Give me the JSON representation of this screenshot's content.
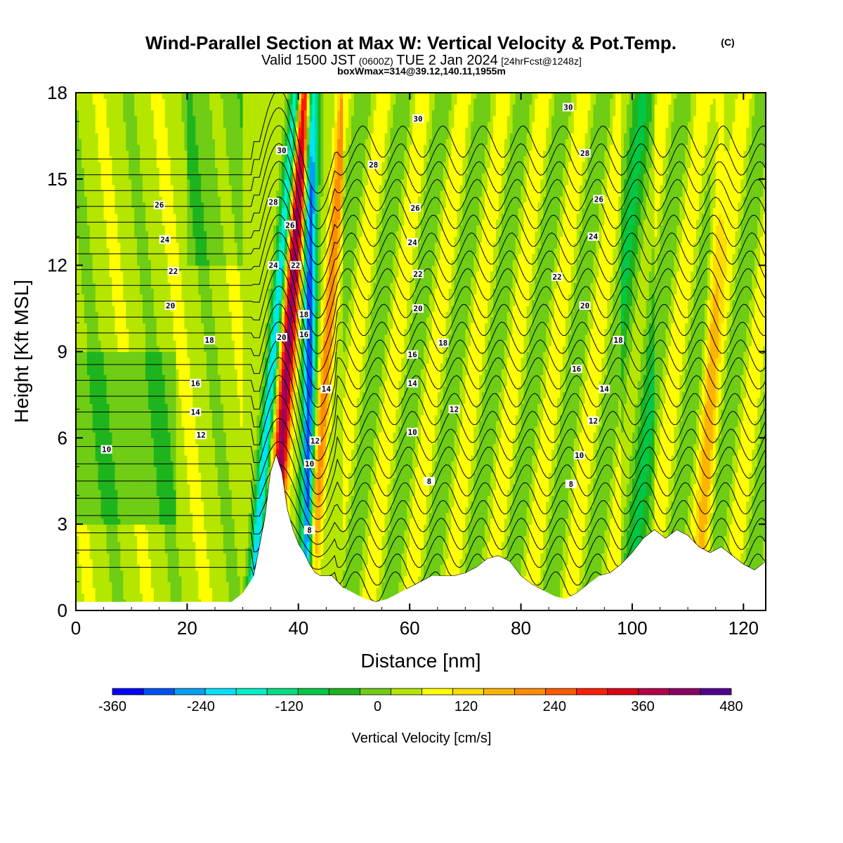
{
  "title": {
    "main": "Wind-Parallel Section at Max W: Vertical Velocity & Pot.Temp.",
    "tag": "(C)",
    "valid_prefix": "Valid 1500 JST",
    "valid_utc": "(0600Z)",
    "valid_date": "TUE 2 Jan 2024",
    "forecast": "[24hrFcst@1248z]",
    "boxmax": "boxWmax=314@39.12,140.11,1955m"
  },
  "chart_data": {
    "type": "heatmap",
    "xlabel": "Distance [nm]",
    "ylabel": "Height [Kft MSL]",
    "xlim": [
      0,
      124
    ],
    "ylim": [
      0,
      18
    ],
    "x_ticks": [
      0,
      20,
      40,
      60,
      80,
      100,
      120
    ],
    "y_ticks": [
      0,
      3,
      6,
      9,
      12,
      15,
      18
    ],
    "colorbar": {
      "label": "Vertical Velocity [cm/s]",
      "range": [
        -360,
        480
      ],
      "step": 40,
      "tick_labels": [
        "-360",
        "-240",
        "-120",
        "0",
        "120",
        "240",
        "360",
        "480"
      ],
      "colors": [
        "#0000ff",
        "#0050f5",
        "#00a0f5",
        "#00e1ff",
        "#00f0c8",
        "#00dc82",
        "#00c846",
        "#1eb41e",
        "#6ecd14",
        "#b4e600",
        "#ffff00",
        "#ffdc00",
        "#ffb400",
        "#ff8c00",
        "#ff5a00",
        "#ff1e00",
        "#dc0014",
        "#b4004b",
        "#8c0064",
        "#50008c"
      ]
    },
    "terrain": {
      "distance_nm": [
        0,
        6,
        12,
        18,
        24,
        28,
        30,
        32,
        34,
        35,
        36,
        37,
        38,
        39,
        40,
        41,
        42,
        43,
        44,
        46,
        48,
        50,
        52,
        54,
        56,
        58,
        60,
        62,
        64,
        66,
        68,
        70,
        72,
        74,
        76,
        78,
        80,
        82,
        84,
        86,
        88,
        90,
        92,
        94,
        96,
        98,
        100,
        102,
        104,
        106,
        108,
        110,
        112,
        114,
        116,
        118,
        120,
        122,
        124
      ],
      "height_kft": [
        0.3,
        0.3,
        0.3,
        0.3,
        0.3,
        0.3,
        0.6,
        1.2,
        3.2,
        4.8,
        5.4,
        4.8,
        3.5,
        2.8,
        2.3,
        2.0,
        1.6,
        1.3,
        1.2,
        1.2,
        0.8,
        0.6,
        0.4,
        0.3,
        0.4,
        0.6,
        0.8,
        1.0,
        1.2,
        1.2,
        1.2,
        1.3,
        1.5,
        1.8,
        1.9,
        1.7,
        1.2,
        0.9,
        0.7,
        0.5,
        0.4,
        0.6,
        0.9,
        1.2,
        1.3,
        1.6,
        2.0,
        2.5,
        2.8,
        2.5,
        2.8,
        2.6,
        2.2,
        2.0,
        2.2,
        1.9,
        1.6,
        1.4,
        1.7
      ]
    },
    "theta_labels": [
      {
        "x": 5.5,
        "y": 5.6,
        "t": "10"
      },
      {
        "x": 22.5,
        "y": 6.1,
        "t": "12"
      },
      {
        "x": 21.5,
        "y": 6.9,
        "t": "14"
      },
      {
        "x": 21.5,
        "y": 7.9,
        "t": "16"
      },
      {
        "x": 24,
        "y": 9.4,
        "t": "18"
      },
      {
        "x": 17,
        "y": 10.6,
        "t": "20"
      },
      {
        "x": 17.5,
        "y": 11.8,
        "t": "22"
      },
      {
        "x": 16,
        "y": 12.9,
        "t": "24"
      },
      {
        "x": 15,
        "y": 14.1,
        "t": "26"
      },
      {
        "x": 37,
        "y": 16.0,
        "t": "30"
      },
      {
        "x": 35.5,
        "y": 14.2,
        "t": "28"
      },
      {
        "x": 38.5,
        "y": 13.4,
        "t": "26"
      },
      {
        "x": 35.5,
        "y": 12.0,
        "t": "24"
      },
      {
        "x": 39.5,
        "y": 12.0,
        "t": "22"
      },
      {
        "x": 41,
        "y": 10.3,
        "t": "18"
      },
      {
        "x": 37,
        "y": 9.5,
        "t": "20"
      },
      {
        "x": 41,
        "y": 9.6,
        "t": "16"
      },
      {
        "x": 45,
        "y": 7.7,
        "t": "14"
      },
      {
        "x": 43,
        "y": 5.9,
        "t": "12"
      },
      {
        "x": 42,
        "y": 5.1,
        "t": "10"
      },
      {
        "x": 42,
        "y": 2.8,
        "t": "8"
      },
      {
        "x": 53.5,
        "y": 15.5,
        "t": "28"
      },
      {
        "x": 61.5,
        "y": 17.1,
        "t": "30"
      },
      {
        "x": 61,
        "y": 14.0,
        "t": "26"
      },
      {
        "x": 60.5,
        "y": 12.8,
        "t": "24"
      },
      {
        "x": 61.5,
        "y": 11.7,
        "t": "22"
      },
      {
        "x": 61.5,
        "y": 10.5,
        "t": "20"
      },
      {
        "x": 66,
        "y": 9.3,
        "t": "18"
      },
      {
        "x": 60.5,
        "y": 8.9,
        "t": "16"
      },
      {
        "x": 60.5,
        "y": 7.9,
        "t": "14"
      },
      {
        "x": 68,
        "y": 7.0,
        "t": "12"
      },
      {
        "x": 60.5,
        "y": 6.2,
        "t": "10"
      },
      {
        "x": 63.5,
        "y": 4.5,
        "t": "8"
      },
      {
        "x": 88.5,
        "y": 17.5,
        "t": "30"
      },
      {
        "x": 91.5,
        "y": 15.9,
        "t": "28"
      },
      {
        "x": 94,
        "y": 14.3,
        "t": "26"
      },
      {
        "x": 93,
        "y": 13.0,
        "t": "24"
      },
      {
        "x": 86.5,
        "y": 11.6,
        "t": "22"
      },
      {
        "x": 91.5,
        "y": 10.6,
        "t": "20"
      },
      {
        "x": 97.5,
        "y": 9.4,
        "t": "18"
      },
      {
        "x": 90,
        "y": 8.4,
        "t": "16"
      },
      {
        "x": 95,
        "y": 7.7,
        "t": "14"
      },
      {
        "x": 93,
        "y": 6.6,
        "t": "12"
      },
      {
        "x": 90.5,
        "y": 5.4,
        "t": "10"
      },
      {
        "x": 89,
        "y": 4.4,
        "t": "8"
      }
    ]
  }
}
